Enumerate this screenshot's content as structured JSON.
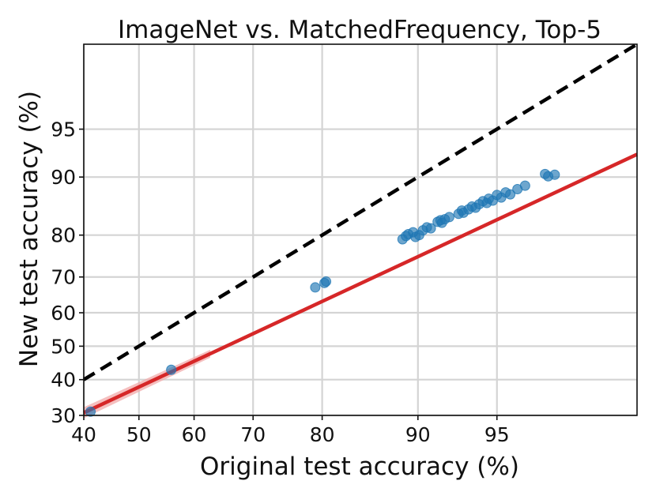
{
  "chart_data": {
    "type": "scatter",
    "title": "ImageNet vs. MatchedFrequency, Top-5",
    "xlabel": "Original test accuracy (%)",
    "ylabel": "New test accuracy (%)",
    "scale": "probit",
    "xlim": [
      40,
      98.9
    ],
    "ylim": [
      30,
      98.9
    ],
    "grid": true,
    "x_ticks": [
      40,
      50,
      60,
      70,
      80,
      90,
      95
    ],
    "y_ticks": [
      30,
      40,
      50,
      60,
      70,
      80,
      90,
      95
    ],
    "colors": {
      "points": "#1f77b4",
      "fit_line": "#d62728",
      "fit_band": "#f2a9a9",
      "reference_line": "#000000"
    },
    "reference_line": {
      "label": "",
      "style": "dashed",
      "points": [
        [
          40,
          40
        ],
        [
          98.9,
          98.9
        ]
      ]
    },
    "fit_line": {
      "style": "solid",
      "points": [
        [
          40,
          30.7
        ],
        [
          98.9,
          92.7
        ]
      ]
    },
    "points": [
      [
        41.2,
        31.0
      ],
      [
        55.9,
        42.9
      ],
      [
        79.1,
        67.2
      ],
      [
        80.3,
        68.4
      ],
      [
        80.5,
        68.8
      ],
      [
        88.7,
        79.1
      ],
      [
        89.0,
        79.8
      ],
      [
        89.2,
        80.2
      ],
      [
        89.6,
        80.6
      ],
      [
        89.8,
        79.6
      ],
      [
        90.1,
        80.0
      ],
      [
        90.4,
        81.0
      ],
      [
        90.7,
        81.6
      ],
      [
        91.0,
        81.4
      ],
      [
        91.5,
        82.7
      ],
      [
        91.7,
        83.0
      ],
      [
        91.8,
        82.5
      ],
      [
        92.0,
        83.2
      ],
      [
        92.3,
        83.6
      ],
      [
        92.9,
        84.2
      ],
      [
        93.1,
        84.8
      ],
      [
        93.2,
        84.4
      ],
      [
        93.5,
        85.0
      ],
      [
        93.7,
        85.5
      ],
      [
        93.9,
        85.3
      ],
      [
        94.1,
        85.9
      ],
      [
        94.3,
        86.4
      ],
      [
        94.5,
        86.1
      ],
      [
        94.6,
        86.8
      ],
      [
        94.8,
        86.5
      ],
      [
        95.0,
        87.4
      ],
      [
        95.2,
        87.0
      ],
      [
        95.4,
        87.8
      ],
      [
        95.6,
        87.5
      ],
      [
        95.9,
        88.3
      ],
      [
        96.2,
        88.8
      ],
      [
        96.9,
        90.4
      ],
      [
        97.0,
        90.1
      ],
      [
        97.2,
        90.3
      ]
    ]
  }
}
